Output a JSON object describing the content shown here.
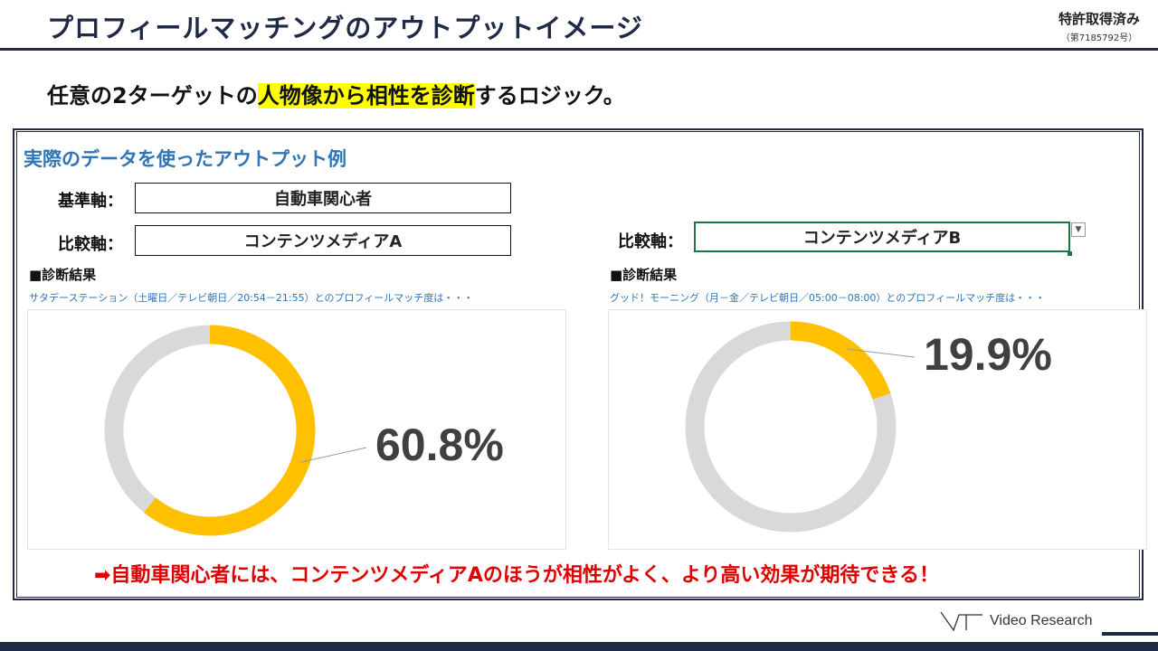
{
  "header": {
    "title": "プロフィールマッチングのアウトプットイメージ",
    "patent_main": "特許取得済み",
    "patent_sub": "（第7185792号）"
  },
  "lead": {
    "pre": "任意の2ターゲットの",
    "highlight": "人物像から相性を診断",
    "post": "するロジック。"
  },
  "section_title": "実際のデータを使ったアウトプット例",
  "axes": {
    "base_label": "基準軸：",
    "base_value": "自動車関心者",
    "compare_label": "比較軸：",
    "compare_a_value": "コンテンツメディアA",
    "compare_b_value": "コンテンツメディアB",
    "dropdown_icon": "chevron-down-icon"
  },
  "results": {
    "left_header": "■診断結果",
    "left_note": "サタデーステーション（土曜日／テレビ朝日／20:54－21:55）とのプロフィールマッチ度は・・・",
    "right_header": "■診断結果",
    "right_note": "グッド！モーニング（月－金／テレビ朝日／05:00－08:00）とのプロフィールマッチ度は・・・"
  },
  "colors": {
    "match": "#ffc000",
    "rest": "#d9d9d9",
    "accent_blue": "#2e75b6",
    "navy": "#1f2a44",
    "red": "#e00000"
  },
  "chart_data": [
    {
      "type": "pie",
      "variant": "donut",
      "label": "60.8%",
      "slices": [
        {
          "value": 60.8,
          "color": "#ffc000"
        },
        {
          "value": 39.2,
          "color": "#d9d9d9"
        }
      ]
    },
    {
      "type": "pie",
      "variant": "donut",
      "label": "19.9%",
      "slices": [
        {
          "value": 19.9,
          "color": "#ffc000"
        },
        {
          "value": 80.1,
          "color": "#d9d9d9"
        }
      ]
    }
  ],
  "conclusion": "➡自動車関心者には、コンテンツメディアAのほうが相性がよく、より高い効果が期待できる！",
  "logo": {
    "text": "Video Research"
  }
}
